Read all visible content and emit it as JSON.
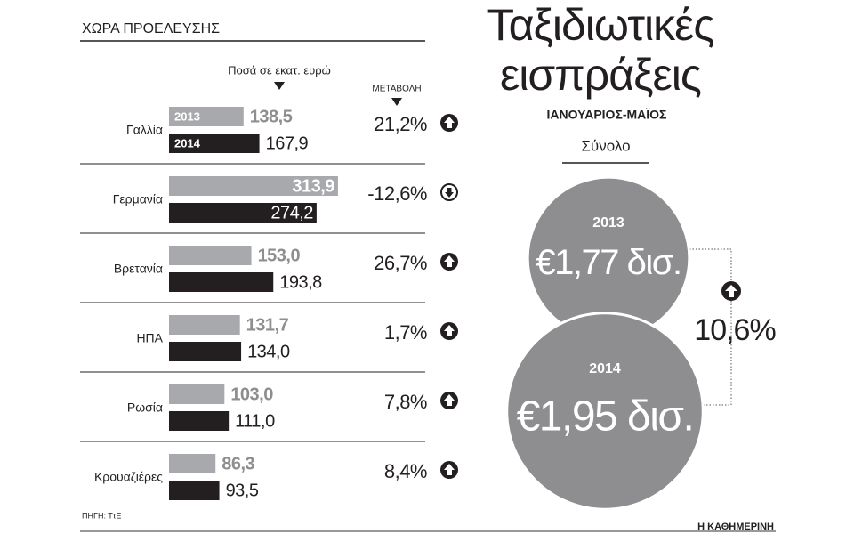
{
  "header": {
    "column_title": "ΧΩΡΑ ΠΡΟΕΛΕΥΣΗΣ"
  },
  "chart_data": [
    {
      "type": "bar",
      "orientation": "horizontal",
      "value_label": "Ποσά σε εκατ. ευρώ",
      "change_label": "ΜΕΤΑΒΟΛΗ",
      "categories": [
        "Γαλλία",
        "Γερμανία",
        "Βρετανία",
        "ΗΠΑ",
        "Ρωσία",
        "Κρουαζιέρες"
      ],
      "series": [
        {
          "name": "2013",
          "color": "#a7a9ac",
          "values": [
            138.5,
            313.9,
            153.0,
            131.7,
            103.0,
            86.3
          ],
          "value_labels": [
            "138,5",
            "313,9",
            "153,0",
            "131,7",
            "103,0",
            "86,3"
          ]
        },
        {
          "name": "2014",
          "color": "#231f20",
          "values": [
            167.9,
            274.2,
            193.8,
            134.0,
            111.0,
            93.5
          ],
          "value_labels": [
            "167,9",
            "274,2",
            "193,8",
            "134,0",
            "111,0",
            "93,5"
          ]
        }
      ],
      "changes": {
        "values": [
          21.2,
          -12.6,
          26.7,
          1.7,
          7.8,
          8.4
        ],
        "value_labels": [
          "21,2%",
          "-12,6%",
          "26,7%",
          "1,7%",
          "7,8%",
          "8,4%"
        ]
      }
    },
    {
      "type": "bubble",
      "title": "Ταξιδιωτικές εισπράξεις",
      "subtitle": "ΙΑΝΟΥΑΡΙΟΣ-ΜΑΪΟΣ",
      "label": "Σύνολο",
      "categories": [
        "2013",
        "2014"
      ],
      "color": "#8e8e90",
      "values": [
        1.77,
        1.95
      ],
      "value_labels": [
        "€1,77 δισ.",
        "€1,95 δισ."
      ],
      "change": 10.6,
      "change_label": "10,6%"
    }
  ],
  "source": "ΠΗΓΗ: ΤτΕ",
  "brand": "Η ΚΑΘΗΜΕΡΙΝΗ"
}
